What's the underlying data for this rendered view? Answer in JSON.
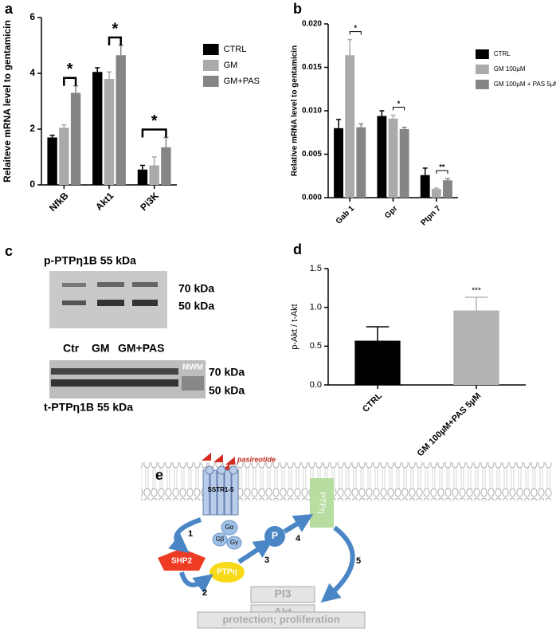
{
  "chart_data": [
    {
      "type": "bar",
      "panel": "a",
      "y_label": "Relaiteve mRNA level to gentamicin",
      "categories": [
        "NfkB",
        "Akt1",
        "Pi3K"
      ],
      "series": [
        {
          "name": "CTRL",
          "color": "#000000",
          "values": [
            1.7,
            4.05,
            0.55
          ],
          "errors": [
            0.08,
            0.15,
            0.15
          ]
        },
        {
          "name": "GM",
          "color": "#aaaaaa",
          "values": [
            2.05,
            3.8,
            0.7
          ],
          "errors": [
            0.1,
            0.25,
            0.3
          ]
        },
        {
          "name": "GM+PAS",
          "color": "#858585",
          "values": [
            3.3,
            4.65,
            1.35
          ],
          "errors": [
            0.25,
            0.35,
            0.35
          ]
        }
      ],
      "ylim": [
        0,
        6
      ],
      "yticks": [
        0,
        2,
        4,
        6
      ],
      "annotations": [
        {
          "text": "*",
          "category": "NfkB",
          "from": "GM",
          "to": "GM+PAS"
        },
        {
          "text": "*",
          "category": "Akt1",
          "from": "GM",
          "to": "GM+PAS"
        },
        {
          "text": "*",
          "category": "Pi3K",
          "from": "CTRL",
          "to": "GM+PAS"
        }
      ]
    },
    {
      "type": "bar",
      "panel": "b",
      "y_label": "Relative mRNA level to gentamicin",
      "categories": [
        "Gab 1",
        "Gpr",
        "Ptpn 7"
      ],
      "series": [
        {
          "name": "CTRL",
          "color": "#000000",
          "values": [
            0.008,
            0.0094,
            0.0026
          ],
          "errors": [
            0.001,
            0.0006,
            0.0008
          ]
        },
        {
          "name": "GM 100µM",
          "color": "#aaaaaa",
          "values": [
            0.0164,
            0.0091,
            0.001
          ],
          "errors": [
            0.0018,
            0.0004,
            0.0001
          ]
        },
        {
          "name": "GM 100µM + PAS 5µM",
          "color": "#858585",
          "values": [
            0.0081,
            0.0079,
            0.002
          ],
          "errors": [
            0.0004,
            0.0002,
            0.0002
          ]
        }
      ],
      "ylim": [
        0,
        0.02
      ],
      "yticks": [
        {
          "value": 0,
          "label": "0.000"
        },
        {
          "value": 0.005,
          "label": "0.005"
        },
        {
          "value": 0.01,
          "label": "0.010"
        },
        {
          "value": 0.015,
          "label": "0.015"
        },
        {
          "value": 0.02,
          "label": "0.020"
        }
      ],
      "annotations": [
        {
          "text": "*",
          "category": "Gab 1",
          "from": "GM 100µM",
          "to": "GM 100µM + PAS 5µM"
        },
        {
          "text": "*",
          "category": "Gpr",
          "from": "GM 100µM",
          "to": "GM 100µM + PAS 5µM"
        },
        {
          "text": "**",
          "category": "Ptpn 7",
          "from": "GM 100µM",
          "to": "GM 100µM + PAS 5µM"
        }
      ]
    },
    {
      "type": "bar",
      "panel": "d",
      "y_label": "p-Akt / t-Akt",
      "categories": [
        "CTRL",
        "GM 100µM+PAS 5µM"
      ],
      "values": [
        0.57,
        0.96
      ],
      "errors": [
        0.18,
        0.17
      ],
      "colors": [
        "#000000",
        "#b3b3b3"
      ],
      "ylim": [
        0,
        1.5
      ],
      "yticks": [
        {
          "value": 0,
          "label": "0.0"
        },
        {
          "value": 0.5,
          "label": "0.5"
        },
        {
          "value": 1,
          "label": "1.0"
        },
        {
          "value": 1.5,
          "label": "1.5"
        }
      ],
      "annotations": [
        {
          "text": "***",
          "category": "GM 100µM+PAS 5µM"
        }
      ]
    }
  ],
  "blot": {
    "panel": "c",
    "top_title": "p-PTPη1B 55 kDa",
    "top_markers": [
      "70 kDa",
      "50 kDa"
    ],
    "lanes": [
      "Ctr",
      "GM",
      "GM+PAS"
    ],
    "mwm": "MWM",
    "bottom_markers": [
      "70 kDa",
      "50 kDa"
    ],
    "bottom_title": "t-PTPη1B 55 kDa"
  },
  "diagram": {
    "panel": "e",
    "ligand": "pasireotide",
    "receptor": "SSTR1-5",
    "g_alpha": "Gα",
    "g_beta": "Gβ",
    "g_gamma": "Gγ",
    "phospho": "P",
    "membrane_ptp": "PTPη",
    "shp2": "SHP2",
    "ptp": "PTPη",
    "pi3": "PI3",
    "akt": "Akt",
    "outcome": "protection; proliferation",
    "steps": [
      "1",
      "2",
      "3",
      "4",
      "5"
    ]
  }
}
